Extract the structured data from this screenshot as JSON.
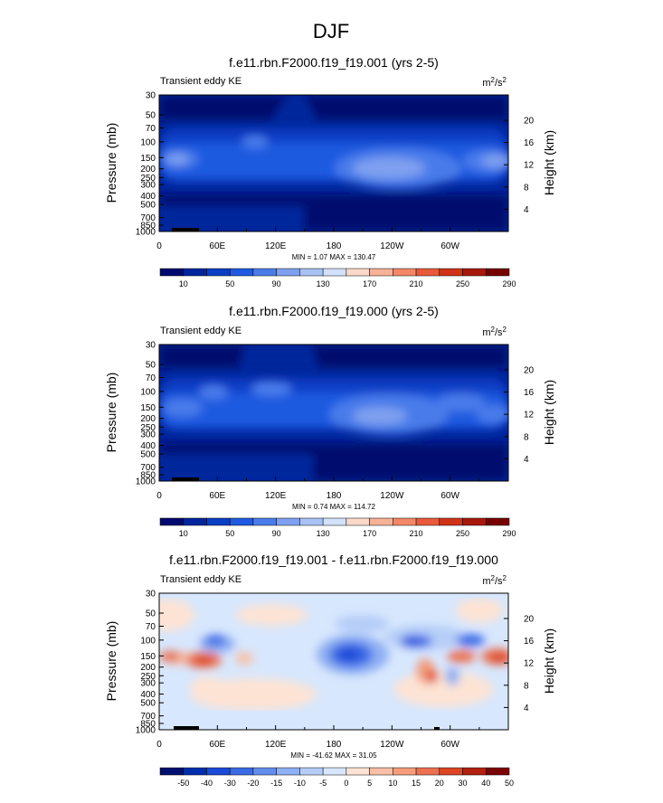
{
  "figure_title": "DJF",
  "chart_data": [
    {
      "type": "heatmap",
      "title": "f.e11.rbn.F2000.f19_f19.001 (yrs 2-5)",
      "left_label": "Transient eddy KE",
      "units": {
        "base": "m",
        "sup1": "2",
        "mid": "/s",
        "sup2": "2"
      },
      "ylabel": "Pressure (mb)",
      "y2label": "Height (km)",
      "y_ticks": [
        "30",
        "50",
        "70",
        "100",
        "150",
        "200",
        "250",
        "300",
        "400",
        "500",
        "700",
        "850",
        "1000"
      ],
      "y2_ticks": [
        "20",
        "16",
        "12",
        "8",
        "4"
      ],
      "x_ticks": [
        "0",
        "60E",
        "120E",
        "180",
        "120W",
        "60W"
      ],
      "stats": "MIN =   1.07  MAX = 130.47",
      "colorbar_labels": [
        "10",
        "50",
        "90",
        "130",
        "170",
        "210",
        "250",
        "290"
      ],
      "yscale": "log"
    },
    {
      "type": "heatmap",
      "title": "f.e11.rbn.F2000.f19_f19.000 (yrs 2-5)",
      "left_label": "Transient eddy KE",
      "units": {
        "base": "m",
        "sup1": "2",
        "mid": "/s",
        "sup2": "2"
      },
      "ylabel": "Pressure (mb)",
      "y2label": "Height (km)",
      "y_ticks": [
        "30",
        "50",
        "70",
        "100",
        "150",
        "200",
        "250",
        "300",
        "400",
        "500",
        "700",
        "850",
        "1000"
      ],
      "y2_ticks": [
        "20",
        "16",
        "12",
        "8",
        "4"
      ],
      "x_ticks": [
        "0",
        "60E",
        "120E",
        "180",
        "120W",
        "60W"
      ],
      "stats": "MIN =   0.74  MAX = 114.72",
      "colorbar_labels": [
        "10",
        "50",
        "90",
        "130",
        "170",
        "210",
        "250",
        "290"
      ],
      "yscale": "log"
    },
    {
      "type": "heatmap",
      "title": "f.e11.rbn.F2000.f19_f19.001 - f.e11.rbn.F2000.f19_f19.000",
      "left_label": "Transient eddy KE",
      "units": {
        "base": "m",
        "sup1": "2",
        "mid": "/s",
        "sup2": "2"
      },
      "ylabel": "Pressure (mb)",
      "y2label": "Height (km)",
      "y_ticks": [
        "30",
        "50",
        "70",
        "100",
        "150",
        "200",
        "250",
        "300",
        "400",
        "500",
        "700",
        "850",
        "1000"
      ],
      "y2_ticks": [
        "20",
        "16",
        "12",
        "8",
        "4"
      ],
      "x_ticks": [
        "0",
        "60E",
        "120E",
        "180",
        "120W",
        "60W"
      ],
      "stats": "MIN = -41.62  MAX = 31.05",
      "colorbar_labels": [
        "-50",
        "-40",
        "-30",
        "-20",
        "-15",
        "-10",
        "-5",
        "0",
        "5",
        "10",
        "15",
        "20",
        "30",
        "40",
        "50"
      ],
      "yscale": "log"
    }
  ],
  "colors": {
    "seq": [
      "#000a6e",
      "#00259c",
      "#0a3ec4",
      "#1f5ae0",
      "#4a7cea",
      "#7fa0f0",
      "#a9c2f5",
      "#d2e2fb",
      "#fad9c8",
      "#f7b197",
      "#f28867",
      "#e85a3a",
      "#cf3318",
      "#a8180d",
      "#760000"
    ],
    "div": [
      "#00106e",
      "#002dae",
      "#1a4ad8",
      "#3a6ae6",
      "#628cee",
      "#8eaff3",
      "#b5cdf8",
      "#d7e7fd",
      "#fde3d4",
      "#f8c0a6",
      "#f49c7b",
      "#ec7151",
      "#dc4625",
      "#b32011",
      "#7a0403"
    ]
  }
}
